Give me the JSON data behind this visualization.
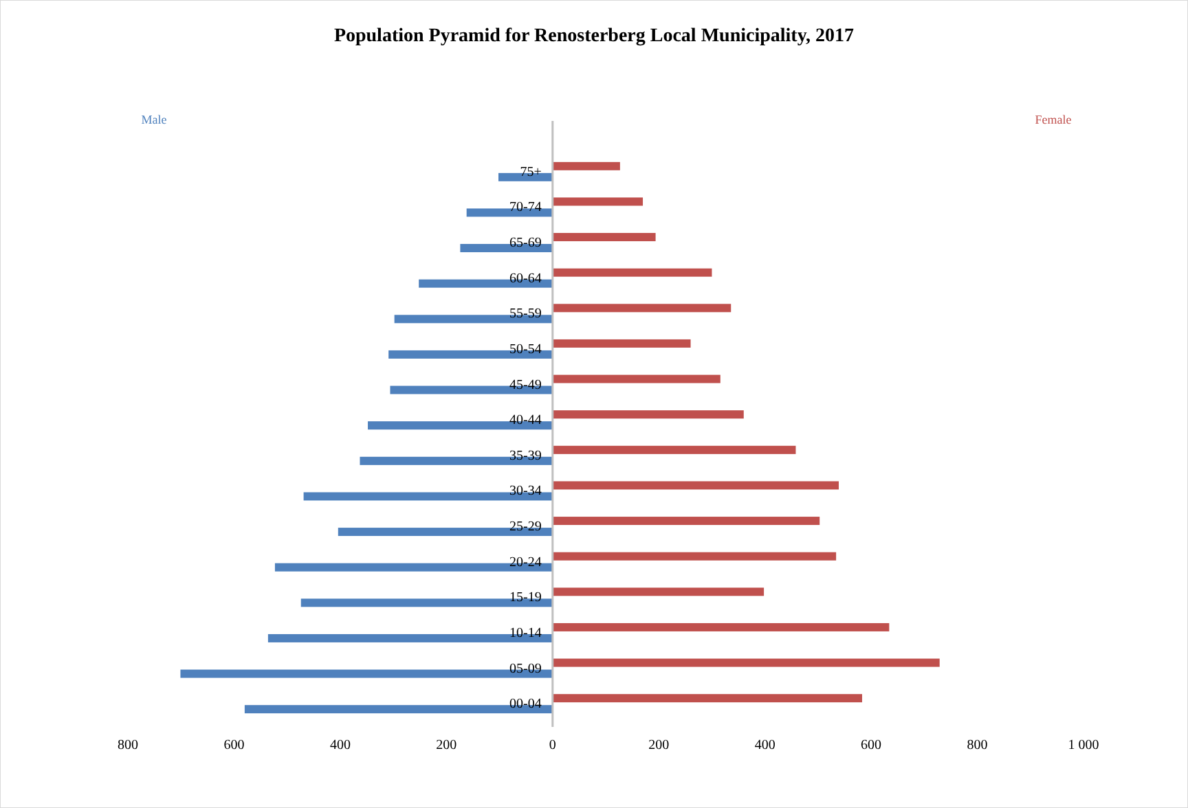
{
  "chart_data": {
    "type": "bar",
    "orientation": "horizontal",
    "title": "Population Pyramid for Renosterberg Local Municipality, 2017",
    "categories": [
      "75+",
      "70-74",
      "65-69",
      "60-64",
      "55-59",
      "50-54",
      "45-49",
      "40-44",
      "35-39",
      "30-34",
      "25-29",
      "20-24",
      "15-19",
      "10-14",
      "05-09",
      "00-04"
    ],
    "series": [
      {
        "name": "Male",
        "color": "#4f81bd",
        "values": [
          -102,
          -162,
          -174,
          -252,
          -298,
          -309,
          -306,
          -348,
          -363,
          -469,
          -404,
          -523,
          -474,
          -536,
          -701,
          -580
        ]
      },
      {
        "name": "Female",
        "color": "#c0504d",
        "values": [
          127,
          170,
          194,
          300,
          336,
          260,
          316,
          360,
          458,
          539,
          503,
          534,
          398,
          634,
          729,
          583
        ]
      }
    ],
    "xlim": [
      -800,
      1000
    ],
    "xticks": [
      {
        "value": -800,
        "label": "800"
      },
      {
        "value": -600,
        "label": "600"
      },
      {
        "value": -400,
        "label": "400"
      },
      {
        "value": -200,
        "label": "200"
      },
      0,
      200,
      400,
      600,
      800,
      {
        "value": 1000,
        "label": "1 000"
      }
    ],
    "grid": false,
    "legend": false
  }
}
